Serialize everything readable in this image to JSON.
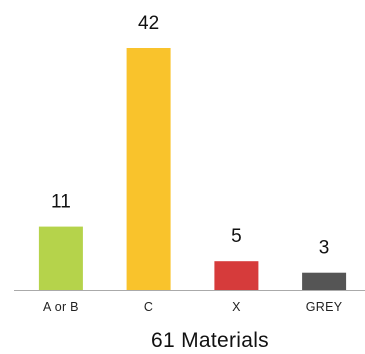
{
  "chart_data": {
    "type": "bar",
    "categories": [
      "A or B",
      "C",
      "X",
      "GREY"
    ],
    "values": [
      11,
      42,
      5,
      3
    ],
    "colors": [
      "#b5d34b",
      "#f9c32c",
      "#d63b3b",
      "#555555"
    ],
    "caption": "61 Materials",
    "title": "",
    "xlabel": "",
    "ylabel": "",
    "ylim": [
      0,
      42
    ],
    "grid": false,
    "legend": "none",
    "axis_color": "#aaaaaa",
    "data_labels": true
  }
}
